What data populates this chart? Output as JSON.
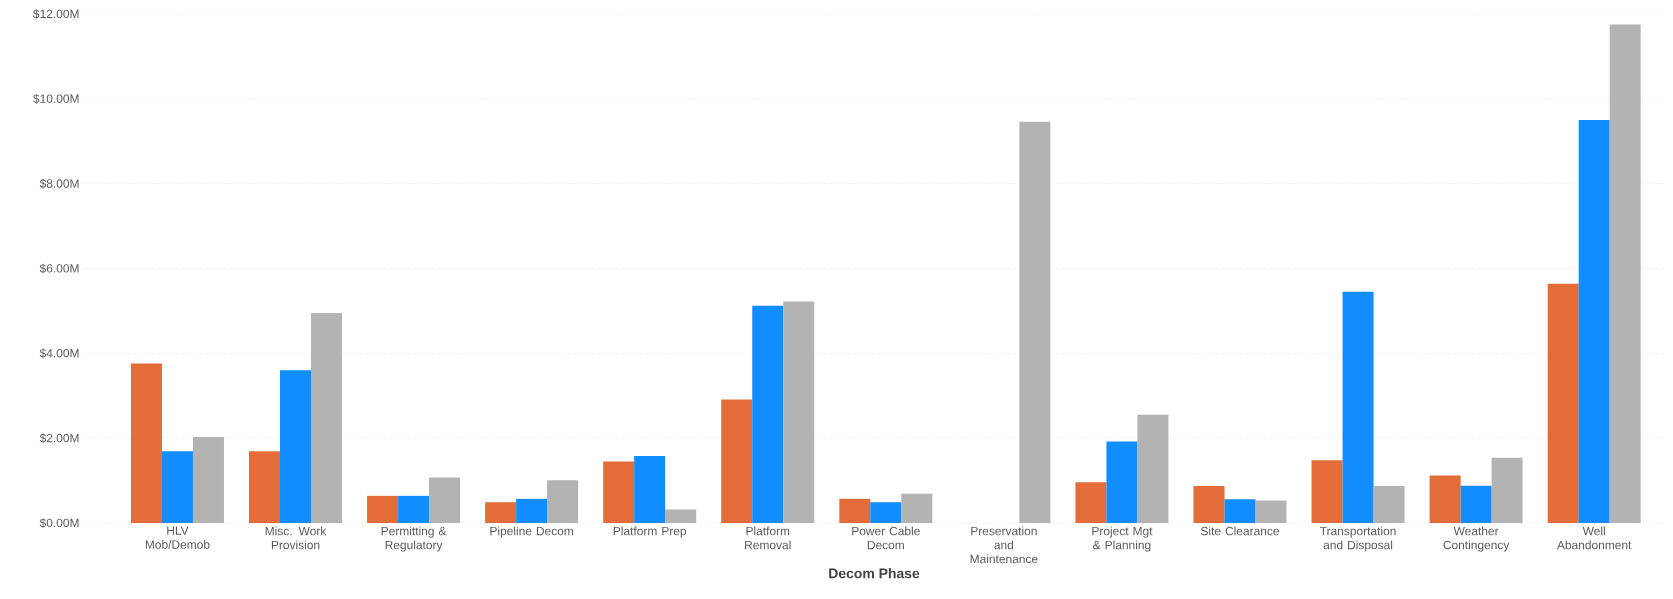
{
  "chart_data": {
    "type": "bar",
    "xlabel": "Decom Phase",
    "categories": [
      "HLV Mob/Demob",
      "Misc. Work Provision",
      "Permitting & Regulatory",
      "Pipeline Decom",
      "Platform Prep",
      "Platform Removal",
      "Power Cable Decom",
      "Preservation and Maintenance",
      "Project Mgt & Planning",
      "Site Clearance",
      "Transportation and Disposal",
      "Weather Contingency",
      "Well Abandonment"
    ],
    "series": [
      {
        "color": "#e46c38",
        "values": [
          3.76,
          1.69,
          0.64,
          0.49,
          1.45,
          2.91,
          0.57,
          null,
          0.96,
          0.87,
          1.48,
          1.12,
          5.64
        ]
      },
      {
        "color": "#118dff",
        "values": [
          1.69,
          3.6,
          0.64,
          0.57,
          1.58,
          5.12,
          0.49,
          null,
          1.92,
          0.56,
          5.45,
          0.88,
          9.5
        ]
      },
      {
        "color": "#b3b3b3",
        "values": [
          2.03,
          4.95,
          1.07,
          1.01,
          0.32,
          5.22,
          0.69,
          9.46,
          2.55,
          0.53,
          0.87,
          1.54,
          11.75
        ]
      }
    ],
    "ylim": [
      0,
      12
    ],
    "yticks": [
      {
        "value": 0,
        "label": "$0.00M"
      },
      {
        "value": 2,
        "label": "$2.00M"
      },
      {
        "value": 4,
        "label": "$4.00M"
      },
      {
        "value": 6,
        "label": "$6.00M"
      },
      {
        "value": 8,
        "label": "$8.00M"
      },
      {
        "value": 10,
        "label": "$10.00M"
      },
      {
        "value": 12,
        "label": "$12.00M"
      }
    ],
    "grid": "y"
  }
}
